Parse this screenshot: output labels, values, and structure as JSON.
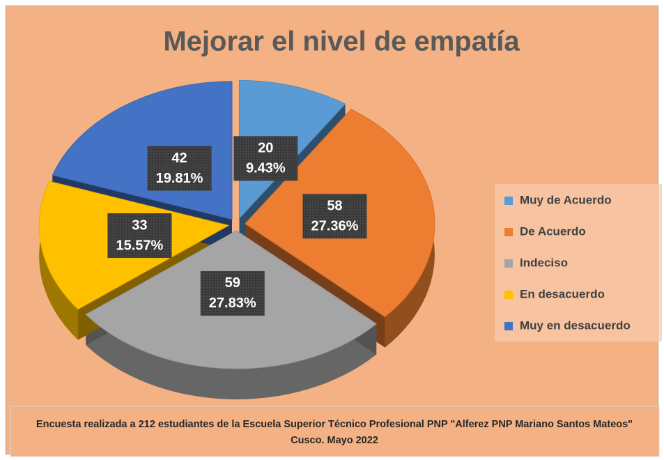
{
  "chart_data": {
    "type": "pie",
    "title": "Mejorar el nivel de empatía",
    "categories": [
      "Muy de Acuerdo",
      "De Acuerdo",
      "Indeciso",
      "En desacuerdo",
      "Muy en desacuerdo"
    ],
    "values": [
      20,
      58,
      59,
      33,
      42
    ],
    "percent_labels": [
      "9.43%",
      "27.36%",
      "27.83%",
      "15.57%",
      "19.81%"
    ],
    "colors": [
      "#5b9bd5",
      "#ed7d31",
      "#a5a5a5",
      "#ffc000",
      "#4472c4"
    ],
    "legend": "right",
    "note": "Encuesta realizada a 212 estudiantes  de la Escuela Superior Técnico Profesional PNP \"Alferez PNP Mariano Santos Mateos\" Cusco. Mayo 2022"
  }
}
